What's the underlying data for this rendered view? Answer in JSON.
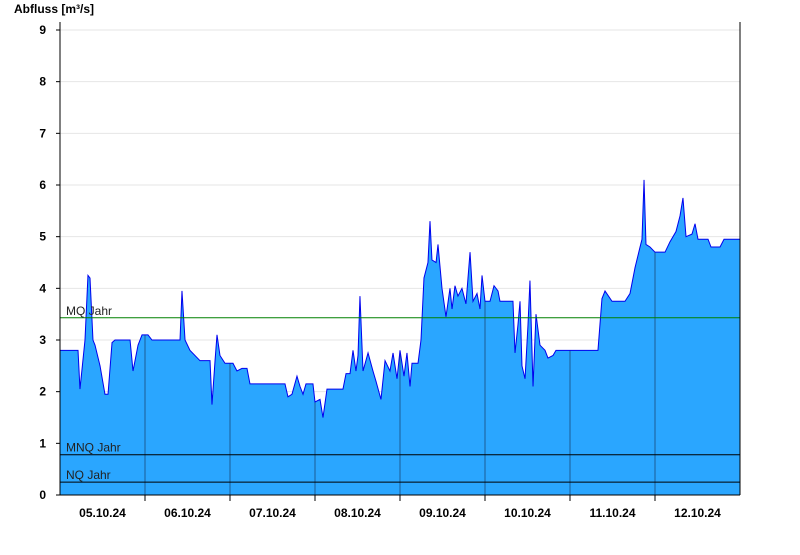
{
  "chart_data": {
    "type": "area",
    "title": "Abfluss [m³/s]",
    "x": [
      0,
      0.212,
      0.235,
      0.294,
      0.329,
      0.353,
      0.388,
      0.412,
      0.471,
      0.529,
      0.565,
      0.612,
      0.647,
      0.824,
      0.859,
      0.918,
      0.965,
      1.035,
      1.082,
      1.412,
      1.435,
      1.471,
      1.529,
      1.647,
      1.765,
      1.788,
      1.824,
      1.847,
      1.882,
      1.941,
      2.035,
      2.082,
      2.141,
      2.2,
      2.235,
      2.647,
      2.682,
      2.729,
      2.788,
      2.824,
      2.859,
      2.894,
      2.976,
      3.0,
      3.059,
      3.094,
      3.141,
      3.329,
      3.365,
      3.412,
      3.447,
      3.482,
      3.506,
      3.529,
      3.565,
      3.624,
      3.682,
      3.718,
      3.776,
      3.824,
      3.882,
      3.918,
      3.965,
      4.0,
      4.047,
      4.082,
      4.118,
      4.141,
      4.212,
      4.247,
      4.282,
      4.329,
      4.353,
      4.376,
      4.424,
      4.447,
      4.494,
      4.541,
      4.588,
      4.612,
      4.647,
      4.682,
      4.729,
      4.776,
      4.824,
      4.859,
      4.906,
      4.941,
      4.965,
      5.0,
      5.059,
      5.106,
      5.153,
      5.176,
      5.329,
      5.353,
      5.388,
      5.412,
      5.435,
      5.471,
      5.506,
      5.529,
      5.565,
      5.6,
      5.647,
      5.706,
      5.741,
      5.8,
      5.835,
      6.329,
      6.376,
      6.412,
      6.494,
      6.647,
      6.706,
      6.765,
      6.824,
      6.847,
      6.871,
      6.894,
      6.941,
      7.0,
      7.118,
      7.176,
      7.247,
      7.294,
      7.329,
      7.365,
      7.435,
      7.471,
      7.506,
      7.624,
      7.659,
      7.765,
      7.812,
      8.0
    ],
    "series": [
      {
        "color": "#2aa6ff",
        "line_color": "#0000ee",
        "values": [
          2.8,
          2.8,
          2.05,
          3.0,
          4.25,
          4.2,
          3.0,
          2.9,
          2.5,
          1.95,
          1.95,
          2.95,
          3.0,
          3.0,
          2.4,
          2.9,
          3.1,
          3.1,
          3.0,
          3.0,
          3.95,
          3.0,
          2.8,
          2.6,
          2.6,
          1.75,
          2.6,
          3.1,
          2.7,
          2.55,
          2.55,
          2.4,
          2.45,
          2.45,
          2.15,
          2.15,
          1.9,
          1.95,
          2.3,
          2.1,
          1.95,
          2.15,
          2.15,
          1.8,
          1.85,
          1.5,
          2.05,
          2.05,
          2.35,
          2.35,
          2.8,
          2.4,
          2.7,
          3.85,
          2.4,
          2.75,
          2.4,
          2.2,
          1.85,
          2.6,
          2.4,
          2.75,
          2.25,
          2.8,
          2.3,
          2.75,
          2.1,
          2.55,
          2.55,
          3.0,
          4.2,
          4.5,
          5.3,
          4.55,
          4.5,
          4.85,
          4.0,
          3.45,
          4.0,
          3.6,
          4.05,
          3.85,
          4.0,
          3.7,
          4.7,
          3.75,
          3.9,
          3.6,
          4.25,
          3.75,
          3.75,
          4.05,
          3.95,
          3.75,
          3.75,
          2.75,
          3.3,
          3.75,
          2.5,
          2.25,
          3.3,
          4.15,
          2.1,
          3.5,
          2.9,
          2.8,
          2.65,
          2.7,
          2.8,
          2.8,
          3.8,
          3.95,
          3.75,
          3.75,
          3.9,
          4.4,
          4.8,
          4.95,
          6.1,
          4.85,
          4.8,
          4.7,
          4.7,
          4.9,
          5.1,
          5.4,
          5.75,
          5.0,
          5.05,
          5.25,
          4.95,
          4.95,
          4.8,
          4.8,
          4.95,
          4.95
        ]
      }
    ],
    "xlim": [
      0,
      8
    ],
    "xticks": [
      {
        "value": 0.5,
        "label": "05.10.24"
      },
      {
        "value": 1.5,
        "label": "06.10.24"
      },
      {
        "value": 2.5,
        "label": "07.10.24"
      },
      {
        "value": 3.5,
        "label": "08.10.24"
      },
      {
        "value": 4.5,
        "label": "09.10.24"
      },
      {
        "value": 5.5,
        "label": "10.10.24"
      },
      {
        "value": 6.5,
        "label": "11.10.24"
      },
      {
        "value": 7.5,
        "label": "12.10.24"
      }
    ],
    "day_lines": [
      1,
      2,
      3,
      4,
      5,
      6,
      7
    ],
    "ylim": [
      0,
      9
    ],
    "yticks": [
      0,
      1,
      2,
      3,
      4,
      5,
      6,
      7,
      8,
      9
    ],
    "grid": true,
    "reference_lines": [
      {
        "name": "MQ Jahr",
        "value": 3.43,
        "color": "#008000"
      },
      {
        "name": "MNQ Jahr",
        "value": 0.78,
        "color": "#000000"
      },
      {
        "name": "NQ Jahr",
        "value": 0.25,
        "color": "#000000"
      }
    ]
  }
}
